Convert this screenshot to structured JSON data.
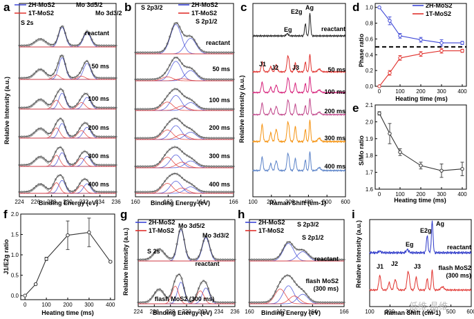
{
  "colors": {
    "blue": "#3b45d6",
    "red": "#e0302c",
    "gray": "#888888",
    "fit": "#3a3a3a"
  },
  "panels": {
    "a": {
      "letter": "a",
      "xlabel": "Binding Energy (eV)",
      "ylabel": "Relative Intensity (a.u.)",
      "xticks": [
        "224",
        "226",
        "228",
        "230",
        "232",
        "234",
        "236"
      ],
      "legend": [
        "2H-MoS2",
        "1T-MoS2"
      ],
      "peaks": [
        "S 2s",
        "Mo 3d5/2",
        "Mo 3d3/2"
      ],
      "rows": [
        "reactant",
        "50 ms",
        "100 ms",
        "200 ms",
        "300 ms",
        "400 ms"
      ]
    },
    "b": {
      "letter": "b",
      "xlabel": "Binding Energy (eV)",
      "xticks": [
        "160",
        "162",
        "164",
        "166"
      ],
      "legend": [
        "2H-MoS2",
        "1T-MoS2"
      ],
      "peaks": [
        "S 2p3/2",
        "S 2p1/2"
      ],
      "rows": [
        "reactant",
        "50 ms",
        "100 ms",
        "200 ms",
        "300 ms",
        "400 ms"
      ]
    },
    "c": {
      "letter": "c",
      "xlabel": "Raman Shift (cm-1)",
      "ylabel": "Relative Intensity (a.u.)",
      "xticks": [
        "100",
        "200",
        "300",
        "400",
        "500",
        "600"
      ],
      "peaks": [
        "E2g",
        "Ag",
        "Eg",
        "J1",
        "J2",
        "J3"
      ],
      "rows": [
        "reactant",
        "50 ms",
        "100 ms",
        "200 ms",
        "300 ms",
        "400 ms"
      ]
    },
    "d": {
      "letter": "d",
      "xlabel": "Heating time (ms)",
      "ylabel": "Phase ratio",
      "legend": [
        "2H-MoS2",
        "1T-MoS2"
      ],
      "xticks": [
        "0",
        "100",
        "200",
        "300",
        "400"
      ],
      "yticks": [
        "0.0",
        "0.2",
        "0.4",
        "0.6",
        "0.8",
        "1.0"
      ]
    },
    "e": {
      "letter": "e",
      "xlabel": "Heating time (ms)",
      "ylabel": "S/Mo ratio",
      "xticks": [
        "0",
        "100",
        "200",
        "300",
        "400"
      ],
      "yticks": [
        "1.6",
        "1.7",
        "1.8",
        "1.9",
        "2.0",
        "2.1"
      ]
    },
    "f": {
      "letter": "f",
      "xlabel": "Heating time (ms)",
      "ylabel": "J1/E2g ratio",
      "xticks": [
        "0",
        "100",
        "200",
        "300",
        "400"
      ],
      "yticks": [
        "0.0",
        "0.5",
        "1.0",
        "1.5",
        "2.0"
      ]
    },
    "g": {
      "letter": "g",
      "xlabel": "Binding Energy (eV)",
      "ylabel": "Relative Intensity (a.u.)",
      "xticks": [
        "224",
        "226",
        "228",
        "230",
        "232",
        "234",
        "236"
      ],
      "legend": [
        "2H-MoS2",
        "1T-MoS2"
      ],
      "peaks": [
        "S 2s",
        "Mo 3d5/2",
        "Mo 3d3/2"
      ],
      "rows": [
        "reactant",
        "flash MoS2 (300 ms)"
      ]
    },
    "h": {
      "letter": "h",
      "xlabel": "Binding Energy (eV)",
      "xticks": [
        "160",
        "162",
        "164",
        "166"
      ],
      "legend": [
        "2H-MoS2",
        "1T-MoS2"
      ],
      "peaks": [
        "S 2p3/2",
        "S 2p1/2"
      ],
      "rows": [
        "reactant",
        "flash MoS2",
        "(300 ms)"
      ]
    },
    "i": {
      "letter": "i",
      "xlabel": "Raman Shift (cm-1)",
      "ylabel": "Relative Intensity (a.u.)",
      "xticks": [
        "100",
        "200",
        "300",
        "400",
        "500",
        "600"
      ],
      "peaks": [
        "E2g",
        "Ag",
        "Eg",
        "J1",
        "J2",
        "J3"
      ],
      "rows": [
        "reactant",
        "flash MoS2",
        "(300 ms)"
      ]
    }
  },
  "watermark": "低维·晶维",
  "chart_data": [
    {
      "type": "line",
      "panel": "d",
      "title": "",
      "xlabel": "Heating time (ms)",
      "ylabel": "Phase ratio",
      "xlim": [
        -20,
        420
      ],
      "ylim": [
        0.0,
        1.05
      ],
      "reference_line": 0.5,
      "x": [
        0,
        50,
        100,
        200,
        300,
        400
      ],
      "series": [
        {
          "name": "2H-MoS2",
          "values": [
            1.0,
            0.83,
            0.64,
            0.59,
            0.55,
            0.55
          ],
          "errors": [
            0.0,
            0.05,
            0.03,
            0.03,
            0.04,
            0.02
          ]
        },
        {
          "name": "1T-MoS2",
          "values": [
            0.0,
            0.17,
            0.36,
            0.41,
            0.45,
            0.45
          ],
          "errors": [
            0.0,
            0.03,
            0.03,
            0.03,
            0.03,
            0.02
          ]
        }
      ]
    },
    {
      "type": "line",
      "panel": "e",
      "title": "",
      "xlabel": "Heating time (ms)",
      "ylabel": "S/Mo ratio",
      "xlim": [
        -20,
        420
      ],
      "ylim": [
        1.6,
        2.1
      ],
      "x": [
        0,
        50,
        100,
        200,
        300,
        400
      ],
      "series": [
        {
          "name": "S/Mo",
          "values": [
            2.05,
            1.93,
            1.82,
            1.74,
            1.71,
            1.72
          ],
          "errors": [
            0.01,
            0.06,
            0.02,
            0.02,
            0.04,
            0.04
          ]
        }
      ]
    },
    {
      "type": "line",
      "panel": "f",
      "title": "",
      "xlabel": "Heating time (ms)",
      "ylabel": "J1/E2g ratio",
      "xlim": [
        -20,
        420
      ],
      "ylim": [
        -0.1,
        2.0
      ],
      "x": [
        0,
        50,
        100,
        200,
        300,
        400
      ],
      "series": [
        {
          "name": "J1/E2g",
          "values": [
            0.0,
            0.28,
            0.9,
            1.48,
            1.55,
            0.83
          ],
          "errors": [
            0.0,
            0.02,
            0.04,
            0.35,
            0.35,
            0.02
          ]
        }
      ]
    },
    {
      "type": "line",
      "panel": "c",
      "title": "",
      "xlabel": "Raman Shift (cm-1)",
      "ylabel": "Relative Intensity (a.u.)",
      "xlim": [
        100,
        600
      ],
      "series": [
        {
          "name": "reactant",
          "peaks": [
            383,
            408
          ]
        },
        {
          "name": "50 ms",
          "peaks": [
            150,
            226,
            329,
            383,
            408
          ]
        },
        {
          "name": "100 ms",
          "peaks": [
            150,
            226,
            329,
            383,
            408
          ]
        },
        {
          "name": "200 ms",
          "peaks": [
            150,
            226,
            329,
            383,
            408
          ]
        },
        {
          "name": "300 ms",
          "peaks": [
            150,
            226,
            329,
            383,
            408
          ]
        },
        {
          "name": "400 ms",
          "peaks": [
            150,
            226,
            329,
            383,
            408
          ]
        }
      ]
    }
  ]
}
